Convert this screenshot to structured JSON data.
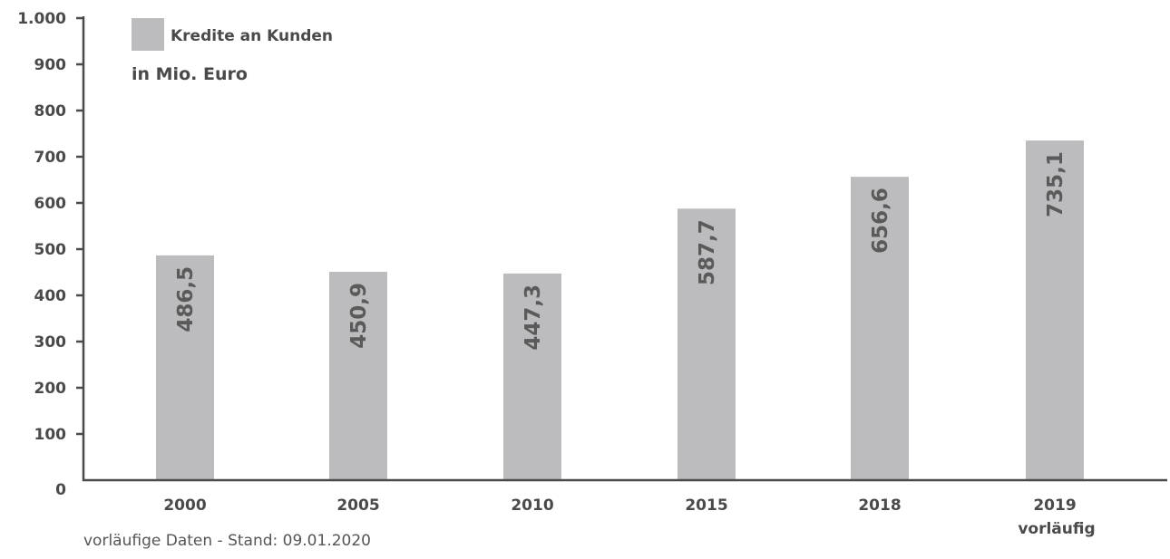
{
  "chart_data": {
    "type": "bar",
    "categories": [
      "2000",
      "2005",
      "2010",
      "2015",
      "2018",
      "2019"
    ],
    "category_sublabels": [
      "",
      "",
      "",
      "",
      "",
      "vorläufig"
    ],
    "values": [
      486.5,
      450.9,
      447.3,
      587.7,
      656.6,
      735.1
    ],
    "value_labels": [
      "486,5",
      "450,9",
      "447,3",
      "587,7",
      "656,6",
      "735,1"
    ],
    "series": [
      {
        "name": "Kredite an Kunden",
        "values": [
          486.5,
          450.9,
          447.3,
          587.7,
          656.6,
          735.1
        ]
      }
    ],
    "legend_label": "Kredite an Kunden",
    "unit": "in Mio. Euro",
    "yticks": [
      0,
      100,
      200,
      300,
      400,
      500,
      600,
      700,
      800,
      900,
      1000
    ],
    "ytick_labels": [
      "0",
      "100",
      "200",
      "300",
      "400",
      "500",
      "600",
      "700",
      "800",
      "900",
      "1.000"
    ],
    "ylim": [
      0,
      1000
    ],
    "legend_position": "top-left",
    "grid": false,
    "bar_color": "#bcbcbf",
    "axis_color": "#4a4a4a"
  },
  "footnote": "vorläufige Daten - Stand: 09.01.2020"
}
